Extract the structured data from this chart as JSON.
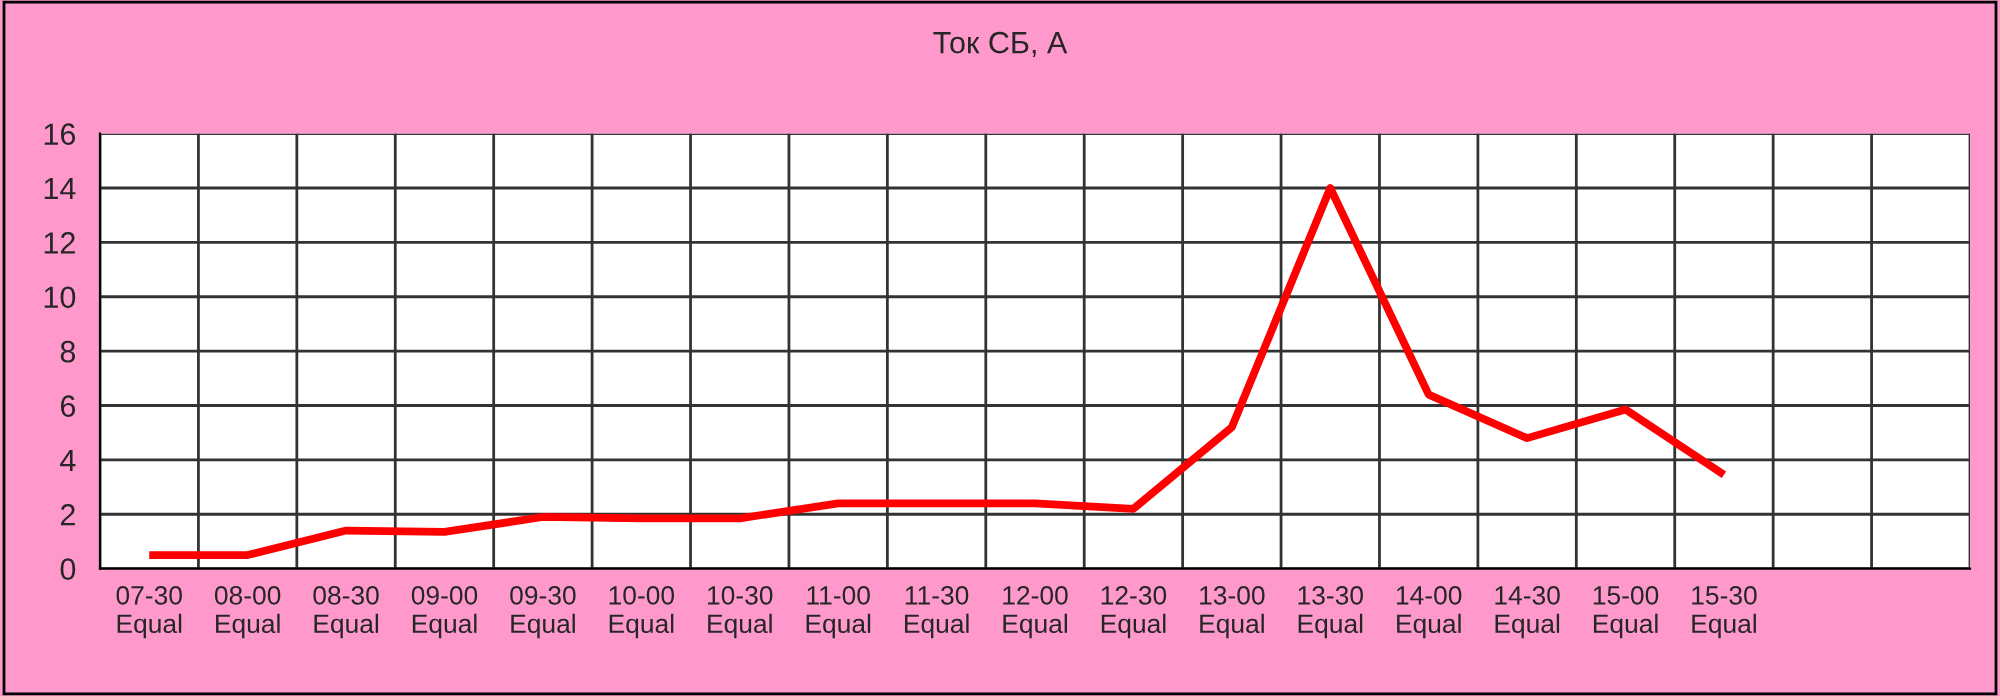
{
  "chart_data": {
    "type": "line",
    "title": "Ток СБ, А",
    "categories": [
      "07-30\nEqual",
      "08-00\nEqual",
      "08-30\nEqual",
      "09-00\nEqual",
      "09-30\nEqual",
      "10-00\nEqual",
      "10-30\nEqual",
      "11-00\nEqual",
      "11-30\nEqual",
      "12-00\nEqual",
      "12-30\nEqual",
      "13-00\nEqual",
      "13-30\nEqual",
      "14-00\nEqual",
      "14-30\nEqual",
      "15-00\nEqual",
      "15-30\nEqual",
      null,
      null
    ],
    "series": [
      {
        "color": "#ff0000",
        "values": [
          0.5,
          0.5,
          1.4,
          1.35,
          1.9,
          1.85,
          1.85,
          2.4,
          2.4,
          2.4,
          2.2,
          5.2,
          14.0,
          6.4,
          4.8,
          5.85,
          3.45,
          null,
          null
        ]
      }
    ],
    "ylim": [
      0,
      16
    ],
    "yticks": [
      0,
      2,
      4,
      6,
      8,
      10,
      12,
      14,
      16
    ],
    "grid": true,
    "line_style": "solid"
  }
}
